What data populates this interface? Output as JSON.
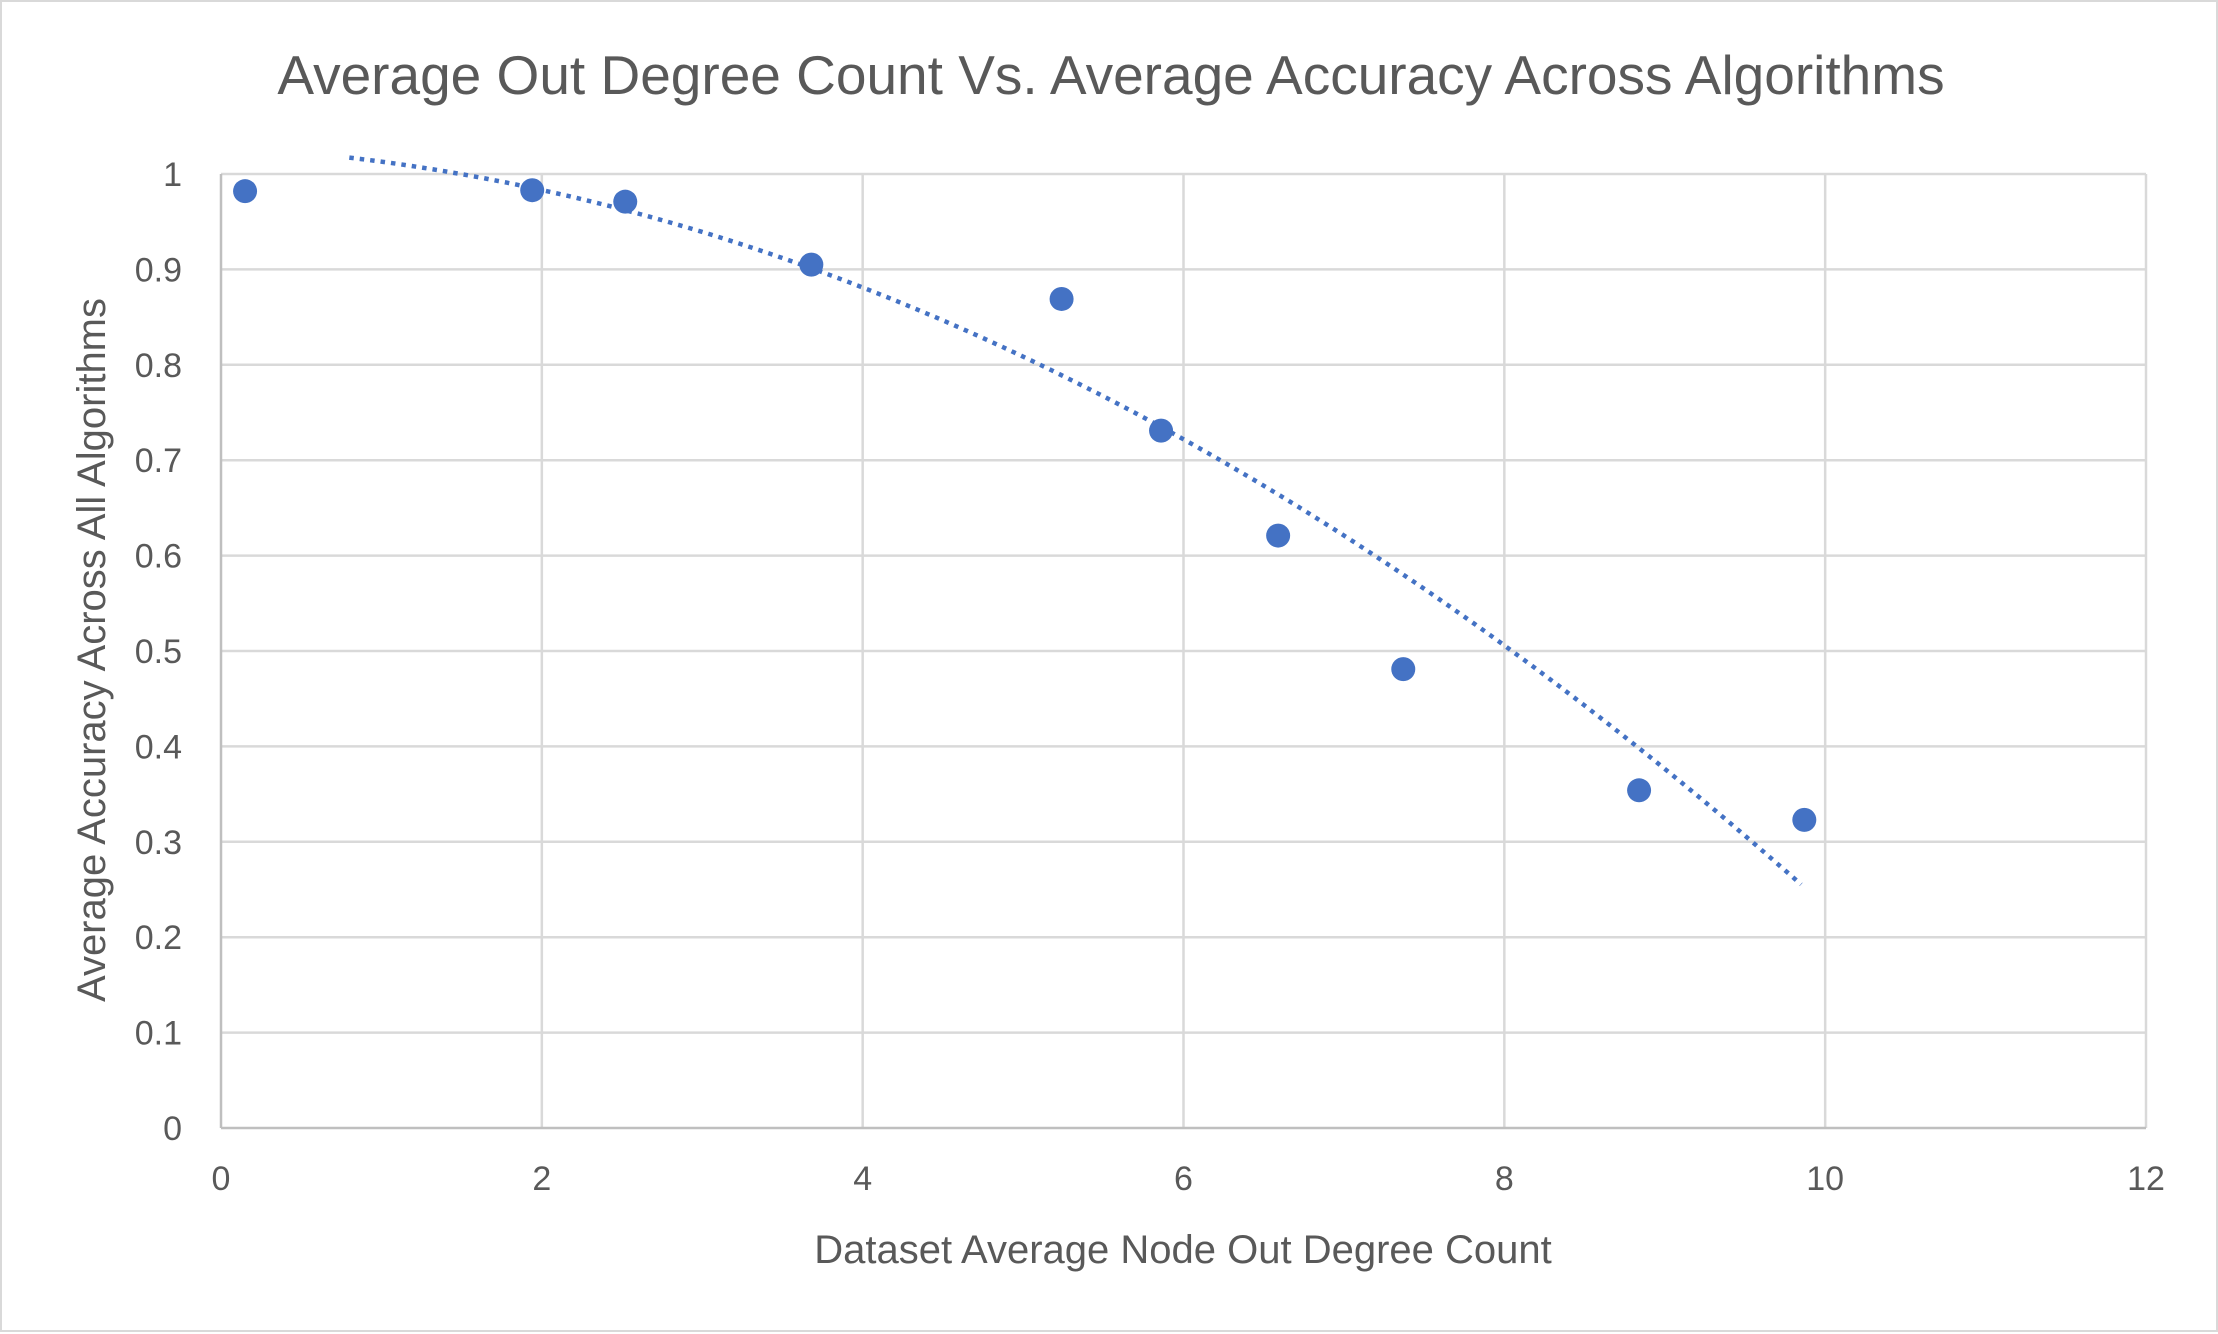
{
  "chart_data": {
    "type": "scatter",
    "title": "Average Out Degree Count Vs. Average Accuracy Across Algorithms",
    "xlabel": "Dataset Average Node Out Degree Count",
    "ylabel": "Average Accuracy Across All Algorithms",
    "xlim": [
      0,
      12
    ],
    "ylim": [
      0,
      1
    ],
    "x_ticks": [
      0,
      2,
      4,
      6,
      8,
      10,
      12
    ],
    "y_ticks": [
      0,
      0.1,
      0.2,
      0.3,
      0.4,
      0.5,
      0.6,
      0.7,
      0.8,
      0.9,
      1
    ],
    "x_tick_labels": [
      "0",
      "2",
      "4",
      "6",
      "8",
      "10",
      "12"
    ],
    "y_tick_labels": [
      "0",
      "0.1",
      "0.2",
      "0.3",
      "0.4",
      "0.5",
      "0.6",
      "0.7",
      "0.8",
      "0.9",
      "1"
    ],
    "grid": true,
    "legend": "none",
    "series": [
      {
        "color": "#4472c4",
        "x": [
          0.15,
          1.94,
          2.52,
          3.68,
          5.24,
          5.86,
          6.59,
          7.37,
          8.84,
          9.87
        ],
        "y": [
          0.982,
          0.983,
          0.971,
          0.905,
          0.869,
          0.731,
          0.621,
          0.481,
          0.354,
          0.323
        ]
      }
    ],
    "trendline": {
      "type": "polynomial",
      "order": 2,
      "style": "dotted",
      "color": "#4472c4",
      "x_range": [
        0.8,
        9.85
      ],
      "coefficients": [
        1.0284,
        -0.00836,
        -0.00712
      ]
    }
  }
}
